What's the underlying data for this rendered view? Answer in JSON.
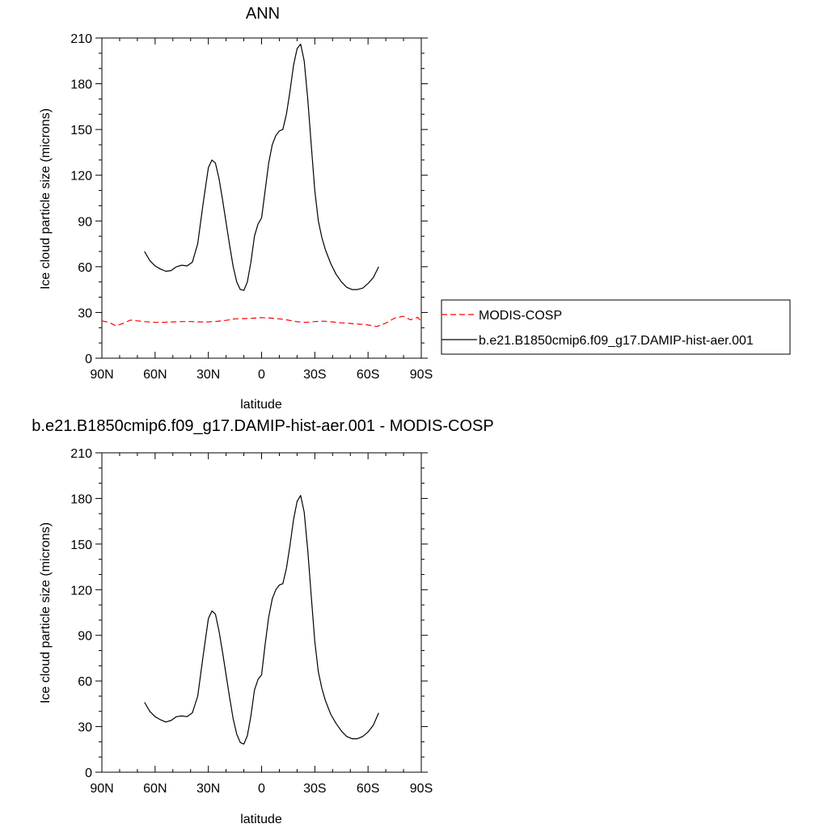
{
  "chart_data": [
    {
      "type": "line",
      "title": "ANN",
      "xlabel": "latitude",
      "ylabel": "Ice cloud particle size (microns)",
      "xlim": [
        -90,
        90
      ],
      "ylim": [
        0,
        210
      ],
      "x_ticks": [
        -90,
        -60,
        -30,
        0,
        30,
        60,
        90
      ],
      "x_tick_labels": [
        "90N",
        "60N",
        "30N",
        "0",
        "30S",
        "60S",
        "90S"
      ],
      "y_ticks": [
        0,
        30,
        60,
        90,
        120,
        150,
        180,
        210
      ],
      "grid": false,
      "legend_placement": "right",
      "series": [
        {
          "name": "MODIS-COSP",
          "color": "#ff0000",
          "dash": "dashed",
          "x": [
            -90,
            -86,
            -82,
            -78,
            -74,
            -70,
            -66,
            -62,
            -58,
            -54,
            -50,
            -45,
            -40,
            -35,
            -30,
            -25,
            -20,
            -15,
            -10,
            -5,
            0,
            5,
            10,
            15,
            20,
            25,
            30,
            35,
            40,
            45,
            50,
            55,
            60,
            65,
            70,
            75,
            80,
            84,
            88,
            90
          ],
          "y": [
            24.5,
            23.5,
            21.2,
            22.8,
            25.0,
            24.5,
            24.0,
            23.6,
            23.5,
            23.6,
            23.8,
            24.0,
            24.0,
            23.8,
            23.8,
            24.2,
            24.8,
            25.8,
            26.0,
            26.2,
            26.6,
            26.3,
            25.8,
            25.0,
            23.9,
            23.5,
            24.0,
            24.3,
            23.8,
            23.2,
            22.8,
            22.3,
            21.8,
            20.8,
            23.0,
            26.3,
            27.5,
            25.2,
            26.8,
            24.0
          ]
        },
        {
          "name": "b.e21.B1850cmip6.f09_g17.DAMIP-hist-aer.001",
          "color": "#000000",
          "dash": "solid",
          "x": [
            -66,
            -63,
            -60,
            -57,
            -54,
            -51,
            -48,
            -45,
            -42,
            -39,
            -36,
            -33,
            -30,
            -28,
            -26,
            -24,
            -22,
            -20,
            -18,
            -16,
            -14,
            -12,
            -10,
            -8,
            -6,
            -4,
            -2,
            0,
            2,
            4,
            6,
            8,
            10,
            12,
            14,
            16,
            18,
            20,
            22,
            24,
            26,
            28,
            30,
            32,
            34,
            36,
            39,
            42,
            45,
            48,
            51,
            54,
            57,
            60,
            63,
            66
          ],
          "y": [
            70,
            64,
            60.5,
            58.5,
            57,
            57.5,
            60,
            61,
            60.5,
            63,
            75,
            101,
            125,
            130,
            128,
            118,
            104,
            89,
            74,
            60,
            50,
            45,
            44.5,
            50,
            63,
            80,
            88,
            92,
            110,
            128,
            140,
            146,
            149,
            150,
            160,
            175,
            192,
            203,
            206,
            195,
            170,
            140,
            110,
            90,
            79,
            71,
            62,
            55,
            50,
            46.5,
            45,
            45,
            46,
            49,
            53,
            60
          ]
        }
      ]
    },
    {
      "type": "line",
      "title": "b.e21.B1850cmip6.f09_g17.DAMIP-hist-aer.001 - MODIS-COSP",
      "xlabel": "latitude",
      "ylabel": "Ice cloud particle size (microns)",
      "xlim": [
        -90,
        90
      ],
      "ylim": [
        0,
        210
      ],
      "x_ticks": [
        -90,
        -60,
        -30,
        0,
        30,
        60,
        90
      ],
      "x_tick_labels": [
        "90N",
        "60N",
        "30N",
        "0",
        "30S",
        "60S",
        "90S"
      ],
      "y_ticks": [
        0,
        30,
        60,
        90,
        120,
        150,
        180,
        210
      ],
      "grid": false,
      "series": [
        {
          "color": "#000000",
          "dash": "solid",
          "x": [
            -66,
            -63,
            -60,
            -57,
            -54,
            -51,
            -48,
            -45,
            -42,
            -39,
            -36,
            -33,
            -30,
            -28,
            -26,
            -24,
            -22,
            -20,
            -18,
            -16,
            -14,
            -12,
            -10,
            -8,
            -6,
            -4,
            -2,
            0,
            2,
            4,
            6,
            8,
            10,
            12,
            14,
            16,
            18,
            20,
            22,
            24,
            26,
            28,
            30,
            32,
            34,
            36,
            39,
            42,
            45,
            48,
            51,
            54,
            57,
            60,
            63,
            66
          ],
          "y": [
            46,
            40,
            36.5,
            34.5,
            33,
            34,
            36.5,
            37,
            36.5,
            39,
            50,
            76,
            101,
            106,
            104,
            93,
            79,
            64,
            49,
            35,
            25,
            19.5,
            18.5,
            24,
            37,
            54,
            61,
            64,
            84,
            102,
            114,
            120,
            123,
            124,
            134,
            149,
            166,
            178,
            182,
            171,
            146,
            116,
            86,
            66,
            55,
            47,
            38,
            32,
            27,
            23.5,
            22,
            22,
            23.5,
            26.5,
            31,
            39
          ]
        }
      ]
    }
  ]
}
